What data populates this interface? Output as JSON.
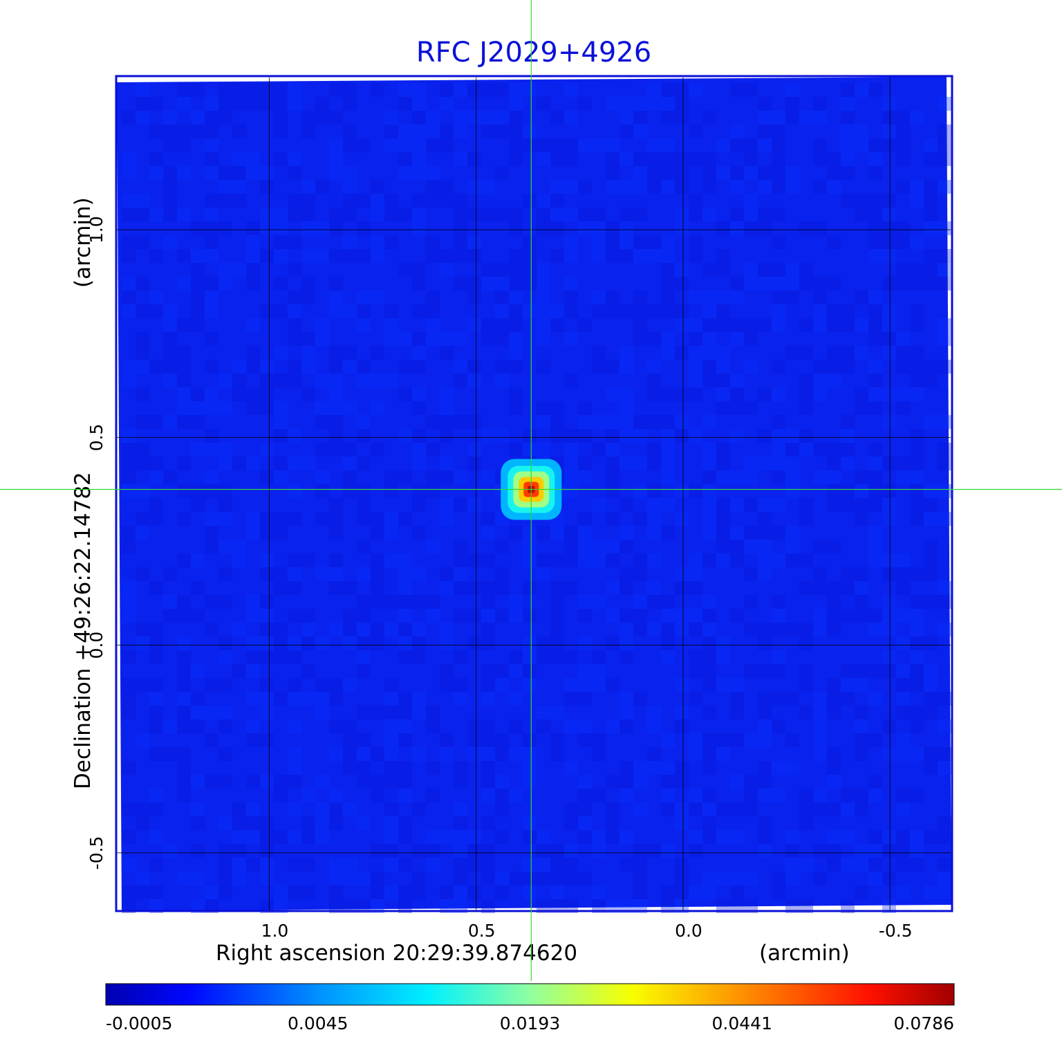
{
  "chart_data": {
    "type": "heatmap",
    "title": "RFC J2029+4926",
    "xlabel": "Right ascension  20:29:39.874620",
    "xunit": "(arcmin)",
    "ylabel": "Declination  +49:26:22.14782",
    "yunit": "(arcmin)",
    "xlim": [
      1.37,
      -0.65
    ],
    "ylim": [
      -0.64,
      1.37
    ],
    "x_reversed": true,
    "x_ticks": [
      1.0,
      0.5,
      0.0,
      -0.5
    ],
    "x_tick_labels": [
      "1.0",
      "0.5",
      "0.0",
      "-0.5"
    ],
    "y_ticks": [
      -0.5,
      0.0,
      0.5,
      1.0
    ],
    "y_tick_labels": [
      "-0.5",
      "0.0",
      "0.5",
      "1.0"
    ],
    "grid": true,
    "crosshair": {
      "x": 0.367,
      "y": 0.375
    },
    "source": {
      "x": 0.367,
      "y": 0.375,
      "peak": 0.0786
    },
    "background_level": 0.0006,
    "colorbar": {
      "tick_labels": [
        "-0.0005",
        "0.0045",
        "0.0193",
        "0.0441",
        "0.0786"
      ],
      "colors": [
        "#0000b4",
        "#0000ff",
        "#00ffff",
        "#ffff00",
        "#ff0000",
        "#a00000"
      ]
    }
  }
}
